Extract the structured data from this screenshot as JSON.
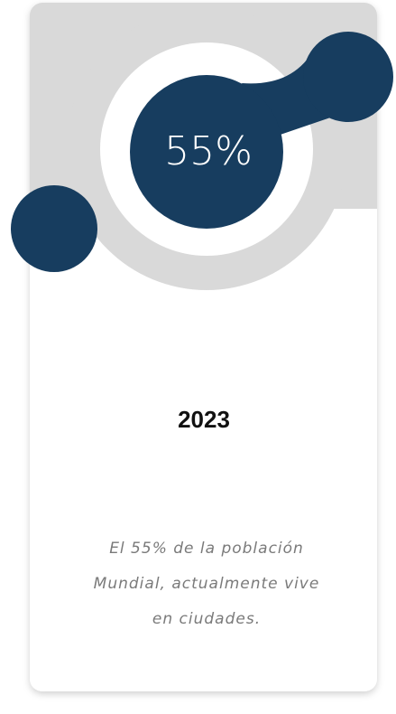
{
  "card": {
    "stat": "55%",
    "year": "2023",
    "description_lines": [
      "El 55% de la población",
      "Mundial, actualmente vive",
      "en ciudades."
    ]
  }
}
